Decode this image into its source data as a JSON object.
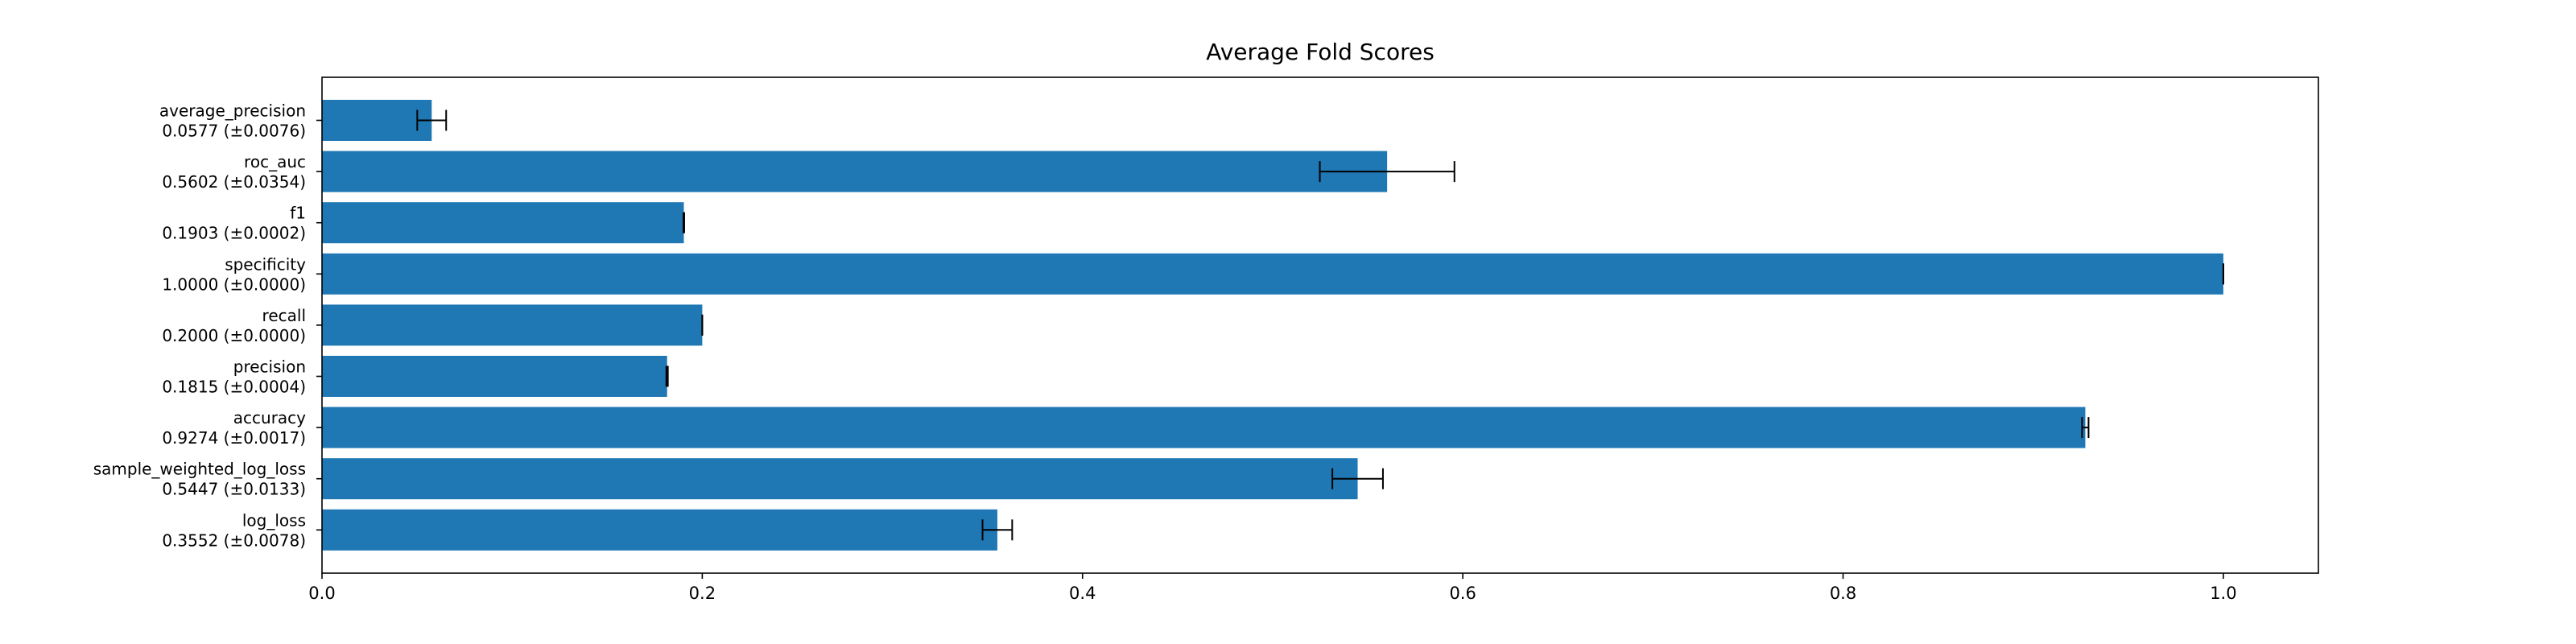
{
  "chart_data": {
    "type": "bar",
    "orientation": "horizontal",
    "title": "Average Fold Scores",
    "xlabel": "",
    "ylabel": "",
    "xlim": [
      0,
      1.05
    ],
    "xticks": [
      0.0,
      0.2,
      0.4,
      0.6,
      0.8,
      1.0
    ],
    "xtick_labels": [
      "0.0",
      "0.2",
      "0.4",
      "0.6",
      "0.8",
      "1.0"
    ],
    "grid": false,
    "bar_color": "#1f77b4",
    "error_color": "#000000",
    "categories": [
      {
        "name": "average_precision",
        "label": "0.0577 (±0.0076)",
        "value": 0.0577,
        "error": 0.0076
      },
      {
        "name": "roc_auc",
        "label": "0.5602 (±0.0354)",
        "value": 0.5602,
        "error": 0.0354
      },
      {
        "name": "f1",
        "label": "0.1903 (±0.0002)",
        "value": 0.1903,
        "error": 0.0002
      },
      {
        "name": "specificity",
        "label": "1.0000 (±0.0000)",
        "value": 1.0,
        "error": 0.0
      },
      {
        "name": "recall",
        "label": "0.2000 (±0.0000)",
        "value": 0.2,
        "error": 0.0
      },
      {
        "name": "precision",
        "label": "0.1815 (±0.0004)",
        "value": 0.1815,
        "error": 0.0004
      },
      {
        "name": "accuracy",
        "label": "0.9274 (±0.0017)",
        "value": 0.9274,
        "error": 0.0017
      },
      {
        "name": "sample_weighted_log_loss",
        "label": "0.5447 (±0.0133)",
        "value": 0.5447,
        "error": 0.0133
      },
      {
        "name": "log_loss",
        "label": "0.3552 (±0.0078)",
        "value": 0.3552,
        "error": 0.0078
      }
    ]
  }
}
